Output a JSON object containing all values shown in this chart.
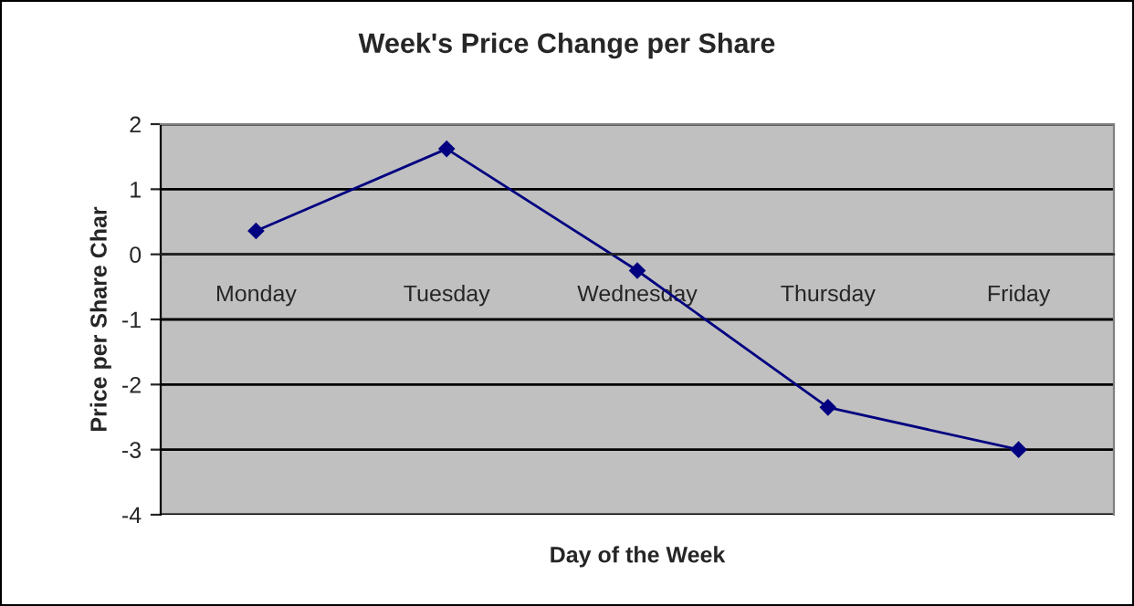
{
  "chart_data": {
    "type": "line",
    "title": "Week's Price Change per Share",
    "xlabel": "Day of the Week",
    "ylabel": "Price per Share Char",
    "categories": [
      "Monday",
      "Tuesday",
      "Wednesday",
      "Thursday",
      "Friday"
    ],
    "series": [
      {
        "color": "#000080",
        "values": [
          0.36,
          1.62,
          -0.25,
          -2.35,
          -3.0
        ]
      }
    ],
    "ylim": [
      -4,
      2
    ],
    "yticks": [
      -4,
      -3,
      -2,
      -1,
      0,
      1,
      2
    ],
    "grid": "y",
    "marker": "diamond",
    "line_style": "solid"
  }
}
